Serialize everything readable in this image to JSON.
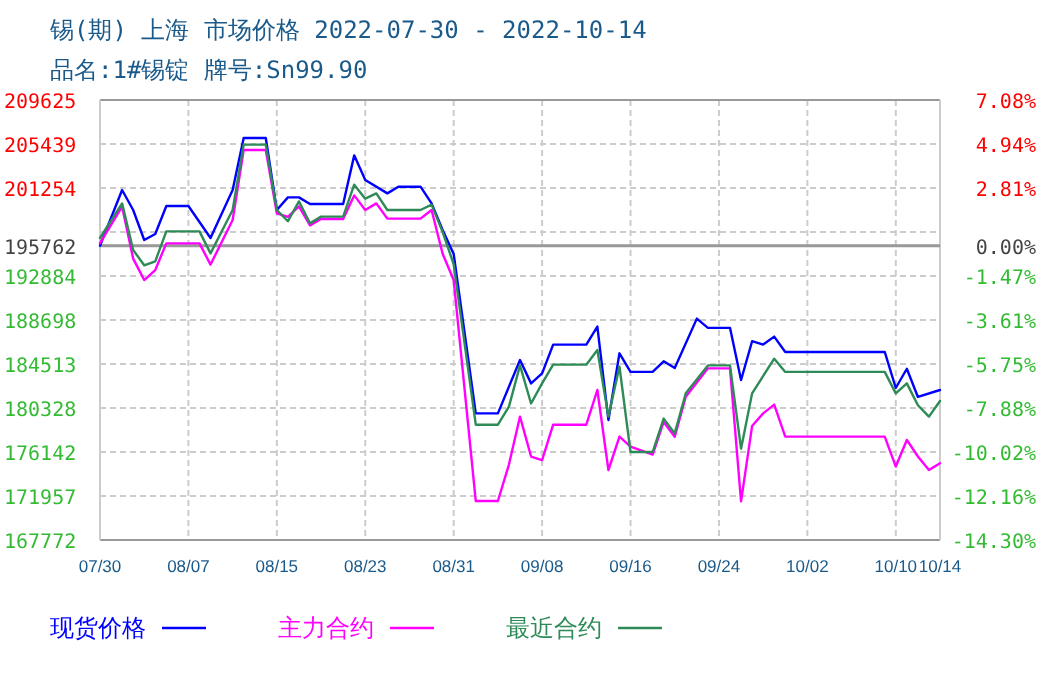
{
  "chart_data": {
    "type": "line",
    "title": "锡(期) 上海 市场价格 2022-07-30 - 2022-10-14",
    "subtitle": "品名:1#锡锭 牌号:Sn99.90",
    "xlim": [
      "2022-07-30",
      "2022-10-14"
    ],
    "xticks": [
      {
        "value": "2022-07-30",
        "label": "07/30"
      },
      {
        "value": "2022-08-07",
        "label": "08/07"
      },
      {
        "value": "2022-08-15",
        "label": "08/15"
      },
      {
        "value": "2022-08-23",
        "label": "08/23"
      },
      {
        "value": "2022-08-31",
        "label": "08/31"
      },
      {
        "value": "2022-09-08",
        "label": "09/08"
      },
      {
        "value": "2022-09-16",
        "label": "09/16"
      },
      {
        "value": "2022-09-24",
        "label": "09/24"
      },
      {
        "value": "2022-10-02",
        "label": "10/02"
      },
      {
        "value": "2022-10-10",
        "label": "10/10"
      },
      {
        "value": "2022-10-14",
        "label": "10/14"
      }
    ],
    "ylim": [
      167772,
      209625
    ],
    "yticks": [
      209625,
      205439,
      201254,
      {
        "value": 197069,
        "label": null
      },
      195762,
      192884,
      188698,
      184513,
      180328,
      176142,
      171957,
      167772
    ],
    "y2lim": [
      -14.3,
      7.08
    ],
    "y2ticks": [
      {
        "value": 7.08,
        "label": "7.08%"
      },
      {
        "value": 4.94,
        "label": "4.94%"
      },
      {
        "value": 2.81,
        "label": "2.81%"
      },
      {
        "value": 0,
        "label": "0.00%"
      },
      {
        "value": -1.47,
        "label": "-1.47%"
      },
      {
        "value": -3.61,
        "label": "-3.61%"
      },
      {
        "value": -5.75,
        "label": "-5.75%"
      },
      {
        "value": -7.88,
        "label": "-7.88%"
      },
      {
        "value": -10.02,
        "label": "-10.02%"
      },
      {
        "value": -12.16,
        "label": "-12.16%"
      },
      {
        "value": -14.3,
        "label": "-14.30%"
      }
    ],
    "ref_lines": [
      {
        "axis": "y",
        "value": 195762,
        "label": null,
        "color": "#999999"
      }
    ],
    "grid": true,
    "legend": "bottom",
    "marker": "none",
    "line_style": "solid",
    "series": [
      {
        "name": "现货价格",
        "color": "#0000ff",
        "x": [
          "2022-07-30",
          "2022-08-01",
          "2022-08-02",
          "2022-08-03",
          "2022-08-04",
          "2022-08-05",
          "2022-08-07",
          "2022-08-09",
          "2022-08-11",
          "2022-08-12",
          "2022-08-14",
          "2022-08-15",
          "2022-08-16",
          "2022-08-17",
          "2022-08-18",
          "2022-08-21",
          "2022-08-22",
          "2022-08-23",
          "2022-08-25",
          "2022-08-26",
          "2022-08-28",
          "2022-08-29",
          "2022-08-30",
          "2022-08-31",
          "2022-09-02",
          "2022-09-04",
          "2022-09-06",
          "2022-09-07",
          "2022-09-08",
          "2022-09-09",
          "2022-09-12",
          "2022-09-13",
          "2022-09-14",
          "2022-09-15",
          "2022-09-16",
          "2022-09-18",
          "2022-09-19",
          "2022-09-20",
          "2022-09-22",
          "2022-09-23",
          "2022-09-25",
          "2022-09-26",
          "2022-09-27",
          "2022-09-28",
          "2022-09-29",
          "2022-09-30",
          "2022-10-09",
          "2022-10-10",
          "2022-10-11",
          "2022-10-12",
          "2022-10-14"
        ],
        "values": [
          195762,
          201060,
          199160,
          196310,
          196880,
          199540,
          199540,
          196500,
          201060,
          206010,
          206010,
          199160,
          200360,
          200360,
          199730,
          199730,
          204360,
          202020,
          200740,
          201380,
          201380,
          199790,
          197260,
          194980,
          179820,
          179820,
          184890,
          182670,
          183620,
          186360,
          186360,
          188070,
          179190,
          185530,
          183760,
          183760,
          184770,
          184130,
          188830,
          187950,
          187950,
          182990,
          186680,
          186360,
          187120,
          185660,
          185660,
          182230,
          184060,
          181380,
          182040
        ]
      },
      {
        "name": "主力合约",
        "color": "#ff00ff",
        "x": [
          "2022-07-30",
          "2022-08-01",
          "2022-08-02",
          "2022-08-03",
          "2022-08-04",
          "2022-08-05",
          "2022-08-08",
          "2022-08-09",
          "2022-08-11",
          "2022-08-12",
          "2022-08-14",
          "2022-08-15",
          "2022-08-16",
          "2022-08-17",
          "2022-08-18",
          "2022-08-19",
          "2022-08-21",
          "2022-08-22",
          "2022-08-23",
          "2022-08-24",
          "2022-08-25",
          "2022-08-28",
          "2022-08-29",
          "2022-08-30",
          "2022-08-31",
          "2022-09-02",
          "2022-09-04",
          "2022-09-05",
          "2022-09-06",
          "2022-09-07",
          "2022-09-08",
          "2022-09-09",
          "2022-09-12",
          "2022-09-13",
          "2022-09-14",
          "2022-09-15",
          "2022-09-16",
          "2022-09-18",
          "2022-09-19",
          "2022-09-20",
          "2022-09-21",
          "2022-09-23",
          "2022-09-25",
          "2022-09-26",
          "2022-09-27",
          "2022-09-28",
          "2022-09-29",
          "2022-09-30",
          "2022-10-09",
          "2022-10-10",
          "2022-10-11",
          "2022-10-12",
          "2022-10-13",
          "2022-10-14"
        ],
        "values": [
          196000,
          199480,
          194540,
          192500,
          193450,
          195990,
          195990,
          193970,
          198210,
          204870,
          204870,
          198850,
          198500,
          199500,
          197700,
          198300,
          198300,
          200550,
          199160,
          199790,
          198340,
          198340,
          199160,
          195000,
          192500,
          171480,
          171480,
          174950,
          179510,
          175710,
          175380,
          178740,
          178740,
          182040,
          174430,
          177610,
          176650,
          175900,
          179000,
          177600,
          181400,
          184100,
          184100,
          171450,
          178610,
          179820,
          180650,
          177610,
          177610,
          174760,
          177290,
          175710,
          174430,
          175070
        ]
      },
      {
        "name": "最近合约",
        "color": "#2e8b57",
        "x": [
          "2022-07-30",
          "2022-08-01",
          "2022-08-02",
          "2022-08-03",
          "2022-08-04",
          "2022-08-05",
          "2022-08-08",
          "2022-08-09",
          "2022-08-11",
          "2022-08-12",
          "2022-08-14",
          "2022-08-15",
          "2022-08-16",
          "2022-08-17",
          "2022-08-18",
          "2022-08-19",
          "2022-08-21",
          "2022-08-22",
          "2022-08-23",
          "2022-08-24",
          "2022-08-25",
          "2022-08-28",
          "2022-08-29",
          "2022-08-30",
          "2022-08-31",
          "2022-09-02",
          "2022-09-04",
          "2022-09-05",
          "2022-09-06",
          "2022-09-07",
          "2022-09-08",
          "2022-09-09",
          "2022-09-12",
          "2022-09-13",
          "2022-09-14",
          "2022-09-15",
          "2022-09-16",
          "2022-09-18",
          "2022-09-19",
          "2022-09-20",
          "2022-09-21",
          "2022-09-23",
          "2022-09-25",
          "2022-09-26",
          "2022-09-27",
          "2022-09-29",
          "2022-09-30",
          "2022-10-09",
          "2022-10-10",
          "2022-10-11",
          "2022-10-12",
          "2022-10-13",
          "2022-10-14"
        ],
        "values": [
          196500,
          199790,
          195360,
          193900,
          194280,
          197130,
          197130,
          195040,
          199160,
          205380,
          205380,
          199160,
          198090,
          199980,
          197890,
          198530,
          198530,
          201570,
          200240,
          200740,
          199160,
          199160,
          199670,
          197070,
          194000,
          178740,
          178740,
          180460,
          184380,
          180760,
          182670,
          184450,
          184450,
          185850,
          179510,
          184270,
          176140,
          176140,
          179320,
          177910,
          181720,
          184380,
          184380,
          176460,
          181720,
          185020,
          183760,
          183760,
          181720,
          182670,
          180590,
          179510,
          181000
        ]
      }
    ]
  }
}
